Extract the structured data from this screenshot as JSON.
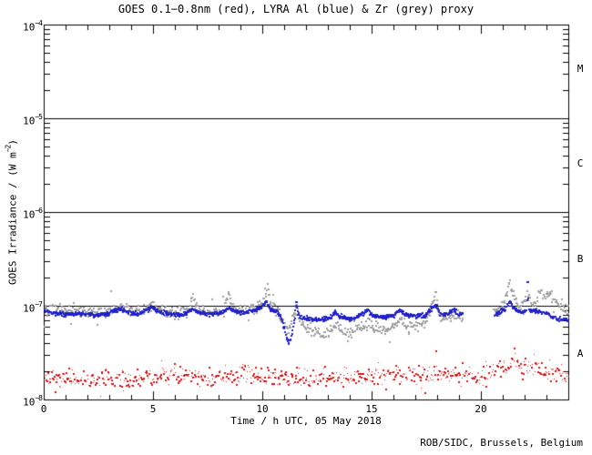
{
  "header": {
    "title": "GOES 0.1−0.8nm (red), LYRA Al (blue) & Zr (grey) proxy"
  },
  "footer": {
    "credit": "ROB/SIDC, Brussels, Belgium"
  },
  "chart_data": {
    "type": "scatter",
    "title": "GOES 0.1−0.8nm (red), LYRA Al (blue) & Zr (grey) proxy",
    "xlabel": "Time / h UTC, 05 May 2018",
    "ylabel": {
      "pre": "GOES Irradiance / (W m",
      "sup": "−2",
      "post": ")"
    },
    "x_range": [
      0,
      24
    ],
    "x_major_tick_step": 5,
    "x_minor_tick_step": 1,
    "x_tick_labels": [
      "0",
      "5",
      "10",
      "15",
      "20"
    ],
    "y_scale": "log",
    "y_range_exp": [
      -8,
      -4
    ],
    "y_ticks": [
      {
        "base": "10",
        "sup": "−4",
        "exp": -4
      },
      {
        "base": "10",
        "sup": "−5",
        "exp": -5
      },
      {
        "base": "10",
        "sup": "−6",
        "exp": -6
      },
      {
        "base": "10",
        "sup": "−7",
        "exp": -7
      },
      {
        "base": "10",
        "sup": "−8",
        "exp": -8
      }
    ],
    "class_boundary_lines_exp": [
      -5,
      -6,
      -7
    ],
    "class_labels": [
      "M",
      "C",
      "B",
      "A"
    ],
    "grid": false,
    "legend_position": "in-title",
    "series": [
      {
        "name": "GOES 0.1-0.8nm",
        "color": "#dd1111",
        "dot": 1,
        "step": 0.033,
        "seed": 7,
        "noise_log": 0.05,
        "outlier_rate": 0.05,
        "outlier_log": 0.09,
        "gaps": [],
        "keyframes": [
          [
            0,
            1.7e-08
          ],
          [
            0.7,
            1.6e-08
          ],
          [
            1.4,
            1.65e-08
          ],
          [
            2.1,
            1.6e-08
          ],
          [
            2.8,
            1.7e-08
          ],
          [
            3.5,
            1.65e-08
          ],
          [
            4.2,
            1.7e-08
          ],
          [
            5.0,
            1.75e-08
          ],
          [
            5.8,
            1.85e-08
          ],
          [
            6.5,
            1.95e-08
          ],
          [
            7.2,
            1.8e-08
          ],
          [
            8.0,
            1.75e-08
          ],
          [
            8.8,
            1.9e-08
          ],
          [
            9.4,
            2e-08
          ],
          [
            10.0,
            1.8e-08
          ],
          [
            10.8,
            1.75e-08
          ],
          [
            11.5,
            1.7e-08
          ],
          [
            12.2,
            1.75e-08
          ],
          [
            13.0,
            1.8e-08
          ],
          [
            13.8,
            1.72e-08
          ],
          [
            14.5,
            1.78e-08
          ],
          [
            15.2,
            1.8e-08
          ],
          [
            16.0,
            1.9e-08
          ],
          [
            16.8,
            1.85e-08
          ],
          [
            17.5,
            1.9e-08
          ],
          [
            18.2,
            1.88e-08
          ],
          [
            19.0,
            1.9e-08
          ],
          [
            19.8,
            1.85e-08
          ],
          [
            20.5,
            2e-08
          ],
          [
            21.0,
            2.3e-08
          ],
          [
            21.5,
            2.45e-08
          ],
          [
            22.0,
            2.3e-08
          ],
          [
            22.6,
            2.1e-08
          ],
          [
            23.2,
            1.95e-08
          ],
          [
            23.6,
            1.85e-08
          ],
          [
            24,
            1.9e-08
          ]
        ]
      },
      {
        "name": "LYRA Zr proxy",
        "color": "#a0a0a0",
        "dot": 2,
        "step": 0.03,
        "seed": 13,
        "noise_log": 0.028,
        "outlier_rate": 0.07,
        "outlier_log": 0.09,
        "gaps": [
          [
            19.15,
            20.55
          ]
        ],
        "keyframes": [
          [
            0,
            9.6e-08
          ],
          [
            0.5,
            9.2e-08
          ],
          [
            1.0,
            8.9e-08
          ],
          [
            1.6,
            9.1e-08
          ],
          [
            2.3,
            8.7e-08
          ],
          [
            2.9,
            8.9e-08
          ],
          [
            3.4,
            1e-07
          ],
          [
            3.8,
            9e-08
          ],
          [
            4.4,
            8.8e-08
          ],
          [
            4.9,
            1.05e-07
          ],
          [
            5.2,
            9.4e-08
          ],
          [
            5.7,
            8.8e-08
          ],
          [
            6.2,
            8.7e-08
          ],
          [
            6.6,
            9.4e-08
          ],
          [
            6.8,
            1.45e-07
          ],
          [
            6.95,
            1e-07
          ],
          [
            7.2,
            9e-08
          ],
          [
            7.7,
            8.8e-08
          ],
          [
            8.2,
            9.2e-08
          ],
          [
            8.42,
            1.38e-07
          ],
          [
            8.6,
            1e-07
          ],
          [
            9.0,
            9.2e-08
          ],
          [
            9.6,
            9.6e-08
          ],
          [
            9.95,
            1.05e-07
          ],
          [
            10.2,
            1.6e-07
          ],
          [
            10.35,
            1.05e-07
          ],
          [
            10.55,
            9.4e-08
          ],
          [
            10.7,
            9e-08
          ],
          [
            10.9,
            7e-08
          ],
          [
            11.1,
            5.5e-08
          ],
          [
            11.25,
            6e-08
          ],
          [
            11.4,
            8e-08
          ],
          [
            11.55,
            9e-08
          ],
          [
            11.7,
            7e-08
          ],
          [
            11.9,
            6.2e-08
          ],
          [
            12.1,
            5.8e-08
          ],
          [
            12.4,
            5.2e-08
          ],
          [
            12.8,
            5.1e-08
          ],
          [
            13.1,
            5.6e-08
          ],
          [
            13.35,
            6.6e-08
          ],
          [
            13.6,
            5.6e-08
          ],
          [
            13.9,
            5.2e-08
          ],
          [
            14.2,
            5.5e-08
          ],
          [
            14.8,
            6.6e-08
          ],
          [
            15.1,
            5.9e-08
          ],
          [
            15.5,
            5.7e-08
          ],
          [
            15.9,
            6e-08
          ],
          [
            16.3,
            7.2e-08
          ],
          [
            16.6,
            6.2e-08
          ],
          [
            17.0,
            6.2e-08
          ],
          [
            17.4,
            6.6e-08
          ],
          [
            17.9,
            1.35e-07
          ],
          [
            18.05,
            8e-08
          ],
          [
            18.3,
            7.2e-08
          ],
          [
            18.6,
            7.6e-08
          ],
          [
            18.85,
            8.2e-08
          ],
          [
            19.1,
            7.8e-08
          ],
          [
            20.55,
            9e-08
          ],
          [
            20.9,
            9.5e-08
          ],
          [
            21.15,
            1.3e-07
          ],
          [
            21.3,
            1.75e-07
          ],
          [
            21.5,
            1.2e-07
          ],
          [
            21.7,
            1.05e-07
          ],
          [
            21.9,
            1.1e-07
          ],
          [
            22.1,
            1.35e-07
          ],
          [
            22.3,
            1.05e-07
          ],
          [
            22.5,
            1.1e-07
          ],
          [
            22.7,
            1.6e-07
          ],
          [
            22.9,
            1.2e-07
          ],
          [
            23.1,
            1.5e-07
          ],
          [
            23.3,
            1.15e-07
          ],
          [
            23.5,
            1.05e-07
          ],
          [
            23.7,
            9.5e-08
          ],
          [
            24,
            9e-08
          ]
        ]
      },
      {
        "name": "LYRA Al proxy",
        "color": "#2222cc",
        "dot": 2,
        "step": 0.022,
        "seed": 99,
        "noise_log": 0.012,
        "outlier_rate": 0,
        "outlier_log": 0,
        "gaps": [
          [
            19.15,
            20.55
          ]
        ],
        "keyframes": [
          [
            0,
            9.2e-08
          ],
          [
            0.3,
            8.6e-08
          ],
          [
            0.8,
            8.3e-08
          ],
          [
            1.5,
            8.4e-08
          ],
          [
            2.2,
            8.2e-08
          ],
          [
            2.8,
            8.3e-08
          ],
          [
            3.4,
            9.6e-08
          ],
          [
            3.8,
            8.6e-08
          ],
          [
            4.3,
            8.4e-08
          ],
          [
            4.9,
            9.8e-08
          ],
          [
            5.15,
            9e-08
          ],
          [
            5.6,
            8.4e-08
          ],
          [
            6.1,
            8.2e-08
          ],
          [
            6.5,
            8.6e-08
          ],
          [
            6.8,
            9.4e-08
          ],
          [
            7.1,
            8.6e-08
          ],
          [
            7.6,
            8.3e-08
          ],
          [
            8.1,
            8.6e-08
          ],
          [
            8.4,
            9.7e-08
          ],
          [
            8.7,
            8.8e-08
          ],
          [
            9.1,
            8.6e-08
          ],
          [
            9.6,
            9e-08
          ],
          [
            9.9,
            1e-07
          ],
          [
            10.15,
            1.15e-07
          ],
          [
            10.3,
            9.4e-08
          ],
          [
            10.55,
            8.8e-08
          ],
          [
            10.7,
            8.6e-08
          ],
          [
            10.85,
            7.5e-08
          ],
          [
            11.0,
            5.5e-08
          ],
          [
            11.15,
            4e-08
          ],
          [
            11.3,
            5e-08
          ],
          [
            11.42,
            7e-08
          ],
          [
            11.5,
            1.15e-07
          ],
          [
            11.6,
            8.2e-08
          ],
          [
            11.75,
            7.6e-08
          ],
          [
            11.9,
            7.5e-08
          ],
          [
            12.3,
            7.3e-08
          ],
          [
            12.8,
            7.3e-08
          ],
          [
            13.1,
            7.6e-08
          ],
          [
            13.3,
            8.8e-08
          ],
          [
            13.5,
            7.8e-08
          ],
          [
            13.9,
            7.4e-08
          ],
          [
            14.2,
            7.6e-08
          ],
          [
            14.8,
            9.2e-08
          ],
          [
            15.0,
            8e-08
          ],
          [
            15.4,
            7.7e-08
          ],
          [
            15.9,
            7.8e-08
          ],
          [
            16.3,
            9.4e-08
          ],
          [
            16.5,
            8.2e-08
          ],
          [
            17.0,
            7.9e-08
          ],
          [
            17.4,
            8e-08
          ],
          [
            17.9,
            1.08e-07
          ],
          [
            18.05,
            8.6e-08
          ],
          [
            18.4,
            8.2e-08
          ],
          [
            18.7,
            9.6e-08
          ],
          [
            18.9,
            8.4e-08
          ],
          [
            19.1,
            8.2e-08
          ],
          [
            20.55,
            8e-08
          ],
          [
            20.8,
            8.8e-08
          ],
          [
            21.05,
            9.2e-08
          ],
          [
            21.3,
            1.15e-07
          ],
          [
            21.45,
            9.5e-08
          ],
          [
            21.7,
            8.8e-08
          ],
          [
            21.9,
            9e-08
          ],
          [
            22.05,
            9.2e-08
          ],
          [
            22.1,
            2.2e-07
          ],
          [
            22.15,
            9.2e-08
          ],
          [
            22.6,
            8.8e-08
          ],
          [
            23.0,
            8.5e-08
          ],
          [
            23.3,
            7.5e-08
          ],
          [
            23.6,
            7.2e-08
          ],
          [
            24,
            7.3e-08
          ]
        ]
      }
    ]
  }
}
